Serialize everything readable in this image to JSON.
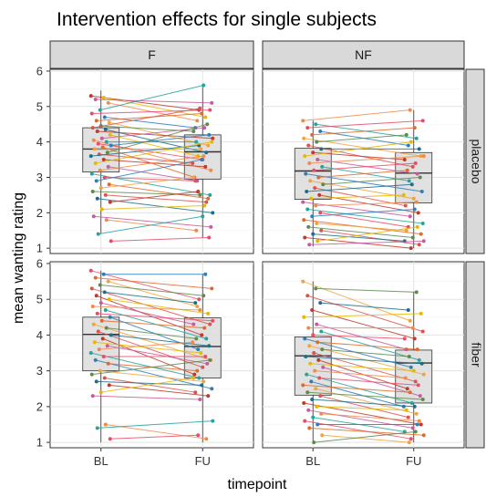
{
  "chart_data": {
    "type": "boxplot-with-paired-points",
    "title": "Intervention effects for single subjects",
    "xlabel": "timepoint",
    "ylabel": "mean wanting rating",
    "x_categories": [
      "BL",
      "FU"
    ],
    "yticks": [
      1,
      2,
      3,
      4,
      5,
      6
    ],
    "ylim": [
      0.85,
      6.05
    ],
    "column_facets": [
      "F",
      "NF"
    ],
    "row_facets": [
      "placebo",
      "fiber"
    ],
    "grid": true,
    "legend": "none",
    "palette": [
      "#c0392b",
      "#e74c6a",
      "#d9534f",
      "#f08a4b",
      "#f1a340",
      "#e6b800",
      "#2c7fb8",
      "#1b6f8a",
      "#27a39b",
      "#5e8a4f",
      "#c85a9e",
      "#e06a2c"
    ],
    "boxes": {
      "F_placebo": {
        "BL": {
          "q1": 3.15,
          "median": 3.8,
          "q3": 4.4,
          "min": 1.4,
          "max": 5.45
        },
        "FU": {
          "q1": 2.95,
          "median": 3.72,
          "q3": 4.2,
          "min": 1.3,
          "max": 5.6
        }
      },
      "NF_placebo": {
        "BL": {
          "q1": 2.38,
          "median": 3.18,
          "q3": 3.82,
          "min": 1.05,
          "max": 4.6
        },
        "FU": {
          "q1": 2.28,
          "median": 3.12,
          "q3": 3.7,
          "min": 1.0,
          "max": 4.9
        }
      },
      "F_fiber": {
        "BL": {
          "q1": 3.0,
          "median": 4.02,
          "q3": 4.5,
          "min": 1.0,
          "max": 5.8
        },
        "FU": {
          "q1": 2.8,
          "median": 3.68,
          "q3": 4.48,
          "min": 1.0,
          "max": 5.7
        }
      },
      "NF_fiber": {
        "BL": {
          "q1": 2.32,
          "median": 3.42,
          "q3": 3.95,
          "min": 1.0,
          "max": 5.5
        },
        "FU": {
          "q1": 2.1,
          "median": 3.22,
          "q3": 3.58,
          "min": 1.0,
          "max": 5.2
        }
      }
    },
    "subjects": {
      "F_placebo": [
        [
          5.3,
          4.9
        ],
        [
          5.25,
          4.7
        ],
        [
          5.2,
          5.1
        ],
        [
          5.1,
          4.6
        ],
        [
          4.9,
          5.6
        ],
        [
          4.8,
          4.9
        ],
        [
          4.7,
          4.4
        ],
        [
          4.6,
          4.8
        ],
        [
          4.55,
          3.9
        ],
        [
          4.45,
          4.3
        ],
        [
          4.4,
          4.95
        ],
        [
          4.35,
          3.7
        ],
        [
          4.3,
          4.1
        ],
        [
          4.2,
          3.6
        ],
        [
          4.1,
          4.4
        ],
        [
          4.05,
          3.2
        ],
        [
          4.0,
          4.0
        ],
        [
          3.95,
          3.5
        ],
        [
          3.9,
          4.2
        ],
        [
          3.85,
          3.0
        ],
        [
          3.8,
          3.8
        ],
        [
          3.7,
          4.5
        ],
        [
          3.65,
          3.4
        ],
        [
          3.6,
          3.9
        ],
        [
          3.5,
          3.3
        ],
        [
          3.4,
          4.0
        ],
        [
          3.3,
          2.9
        ],
        [
          3.2,
          3.6
        ],
        [
          3.1,
          2.5
        ],
        [
          3.0,
          2.9
        ],
        [
          2.9,
          3.5
        ],
        [
          2.8,
          2.4
        ],
        [
          2.7,
          3.0
        ],
        [
          2.6,
          2.5
        ],
        [
          2.5,
          2.3
        ],
        [
          2.4,
          2.0
        ],
        [
          2.3,
          2.6
        ],
        [
          2.1,
          2.2
        ],
        [
          1.9,
          1.6
        ],
        [
          1.8,
          1.5
        ],
        [
          1.4,
          1.9
        ],
        [
          1.2,
          1.3
        ]
      ],
      "NF_placebo": [
        [
          4.6,
          4.9
        ],
        [
          4.5,
          4.1
        ],
        [
          4.4,
          4.6
        ],
        [
          4.3,
          3.9
        ],
        [
          4.2,
          4.4
        ],
        [
          4.1,
          3.6
        ],
        [
          4.0,
          4.2
        ],
        [
          3.9,
          3.3
        ],
        [
          3.8,
          3.8
        ],
        [
          3.7,
          3.5
        ],
        [
          3.6,
          4.0
        ],
        [
          3.5,
          3.1
        ],
        [
          3.4,
          3.6
        ],
        [
          3.3,
          2.9
        ],
        [
          3.2,
          3.4
        ],
        [
          3.1,
          2.6
        ],
        [
          3.0,
          3.2
        ],
        [
          2.9,
          2.4
        ],
        [
          2.8,
          3.0
        ],
        [
          2.7,
          2.2
        ],
        [
          2.6,
          2.8
        ],
        [
          2.5,
          2.0
        ],
        [
          2.4,
          2.5
        ],
        [
          2.3,
          1.9
        ],
        [
          2.2,
          2.3
        ],
        [
          2.1,
          1.7
        ],
        [
          2.0,
          1.6
        ],
        [
          1.9,
          2.1
        ],
        [
          1.8,
          1.4
        ],
        [
          1.7,
          1.5
        ],
        [
          1.6,
          1.3
        ],
        [
          1.5,
          1.1
        ],
        [
          1.4,
          1.2
        ],
        [
          1.3,
          1.0
        ],
        [
          1.2,
          1.6
        ],
        [
          1.1,
          1.2
        ]
      ],
      "F_fiber": [
        [
          5.8,
          5.0
        ],
        [
          5.7,
          5.7
        ],
        [
          5.6,
          5.3
        ],
        [
          5.5,
          4.8
        ],
        [
          5.4,
          5.1
        ],
        [
          5.3,
          4.3
        ],
        [
          5.2,
          4.9
        ],
        [
          5.1,
          4.0
        ],
        [
          5.0,
          4.6
        ],
        [
          4.9,
          4.3
        ],
        [
          4.8,
          4.7
        ],
        [
          4.7,
          3.9
        ],
        [
          4.6,
          4.4
        ],
        [
          4.5,
          3.6
        ],
        [
          4.4,
          4.2
        ],
        [
          4.3,
          3.3
        ],
        [
          4.2,
          3.9
        ],
        [
          4.1,
          3.1
        ],
        [
          4.0,
          3.7
        ],
        [
          3.9,
          2.9
        ],
        [
          3.8,
          3.5
        ],
        [
          3.7,
          3.2
        ],
        [
          3.6,
          3.8
        ],
        [
          3.5,
          2.8
        ],
        [
          3.4,
          3.4
        ],
        [
          3.3,
          2.5
        ],
        [
          3.2,
          3.0
        ],
        [
          3.0,
          2.7
        ],
        [
          2.9,
          3.3
        ],
        [
          2.8,
          2.4
        ],
        [
          2.7,
          2.6
        ],
        [
          2.6,
          2.3
        ],
        [
          2.4,
          2.8
        ],
        [
          2.3,
          2.2
        ],
        [
          1.5,
          1.1
        ],
        [
          1.4,
          1.6
        ],
        [
          1.1,
          1.2
        ]
      ],
      "NF_fiber": [
        [
          5.5,
          4.4
        ],
        [
          5.3,
          5.2
        ],
        [
          5.1,
          4.1
        ],
        [
          4.9,
          4.7
        ],
        [
          4.7,
          3.9
        ],
        [
          4.5,
          4.6
        ],
        [
          4.3,
          3.6
        ],
        [
          4.2,
          4.2
        ],
        [
          4.1,
          3.3
        ],
        [
          4.0,
          3.9
        ],
        [
          3.9,
          3.1
        ],
        [
          3.8,
          3.6
        ],
        [
          3.7,
          2.9
        ],
        [
          3.6,
          3.4
        ],
        [
          3.5,
          2.7
        ],
        [
          3.4,
          3.2
        ],
        [
          3.3,
          2.5
        ],
        [
          3.2,
          3.0
        ],
        [
          3.1,
          2.3
        ],
        [
          3.0,
          2.8
        ],
        [
          2.9,
          2.1
        ],
        [
          2.8,
          2.6
        ],
        [
          2.7,
          2.0
        ],
        [
          2.6,
          2.4
        ],
        [
          2.5,
          1.8
        ],
        [
          2.4,
          2.2
        ],
        [
          2.3,
          1.7
        ],
        [
          2.2,
          2.0
        ],
        [
          2.1,
          1.5
        ],
        [
          2.0,
          1.9
        ],
        [
          1.9,
          1.4
        ],
        [
          1.8,
          1.6
        ],
        [
          1.7,
          1.3
        ],
        [
          1.6,
          1.1
        ],
        [
          1.5,
          1.5
        ],
        [
          1.4,
          1.2
        ],
        [
          1.2,
          1.0
        ],
        [
          1.0,
          1.3
        ]
      ]
    }
  }
}
